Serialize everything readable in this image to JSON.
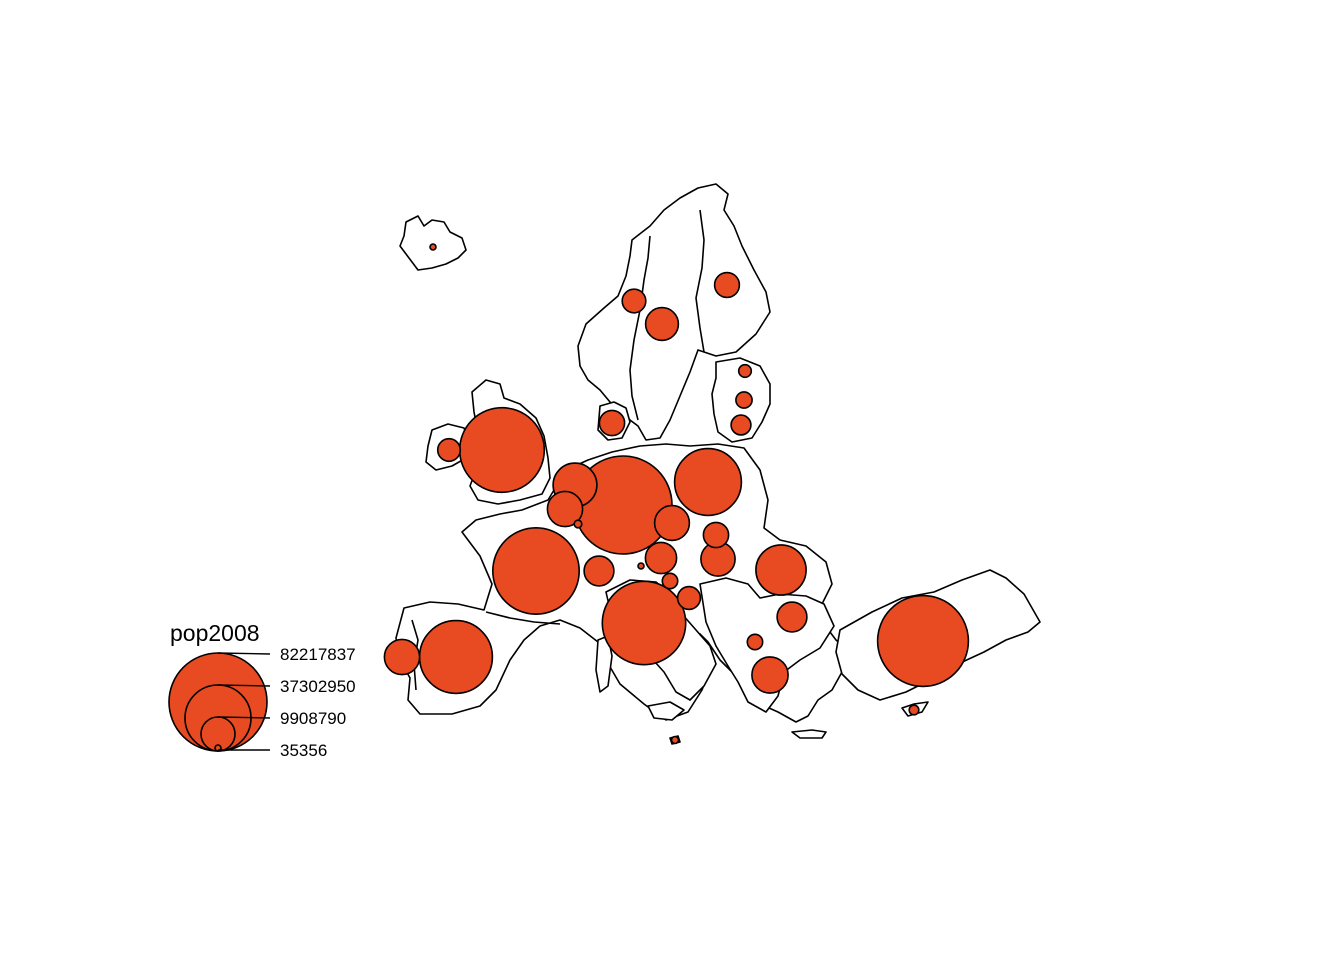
{
  "map": {
    "variable": "pop2008",
    "fill_color": "#e84a22",
    "outline_color": "#000000",
    "legend": {
      "title": "pop2008",
      "values": [
        82217837,
        37302950,
        9908790,
        35356
      ],
      "labels": [
        "82217837",
        "37302950",
        "9908790",
        "35356"
      ]
    },
    "regions": [
      {
        "id": "iceland",
        "value": 315000
      },
      {
        "id": "norway",
        "value": 4737000
      },
      {
        "id": "sweden",
        "value": 9183000
      },
      {
        "id": "finland",
        "value": 5300000
      },
      {
        "id": "estonia",
        "value": 1340000
      },
      {
        "id": "latvia",
        "value": 2270000
      },
      {
        "id": "lithuania",
        "value": 3366000
      },
      {
        "id": "denmark",
        "value": 5476000
      },
      {
        "id": "ireland",
        "value": 4401000
      },
      {
        "id": "united-kingdom",
        "value": 61180000
      },
      {
        "id": "netherlands",
        "value": 16405000
      },
      {
        "id": "belgium",
        "value": 10667000
      },
      {
        "id": "luxembourg",
        "value": 483000
      },
      {
        "id": "germany",
        "value": 82217837
      },
      {
        "id": "poland",
        "value": 38116000
      },
      {
        "id": "czech-republic",
        "value": 10381000
      },
      {
        "id": "slovakia",
        "value": 5400000
      },
      {
        "id": "austria",
        "value": 8319000
      },
      {
        "id": "hungary",
        "value": 10045000
      },
      {
        "id": "switzerland",
        "value": 7593000
      },
      {
        "id": "liechtenstein",
        "value": 35356
      },
      {
        "id": "france",
        "value": 63983000
      },
      {
        "id": "slovenia",
        "value": 2010000
      },
      {
        "id": "croatia",
        "value": 4436000
      },
      {
        "id": "italy",
        "value": 59619000
      },
      {
        "id": "malta",
        "value": 410000
      },
      {
        "id": "spain",
        "value": 45283000
      },
      {
        "id": "portugal",
        "value": 10618000
      },
      {
        "id": "romania",
        "value": 21529000
      },
      {
        "id": "bulgaria",
        "value": 7640000
      },
      {
        "id": "macedonia",
        "value": 2045000
      },
      {
        "id": "greece",
        "value": 11214000
      },
      {
        "id": "turkey",
        "value": 70586000
      },
      {
        "id": "cyprus",
        "value": 789000
      }
    ]
  }
}
